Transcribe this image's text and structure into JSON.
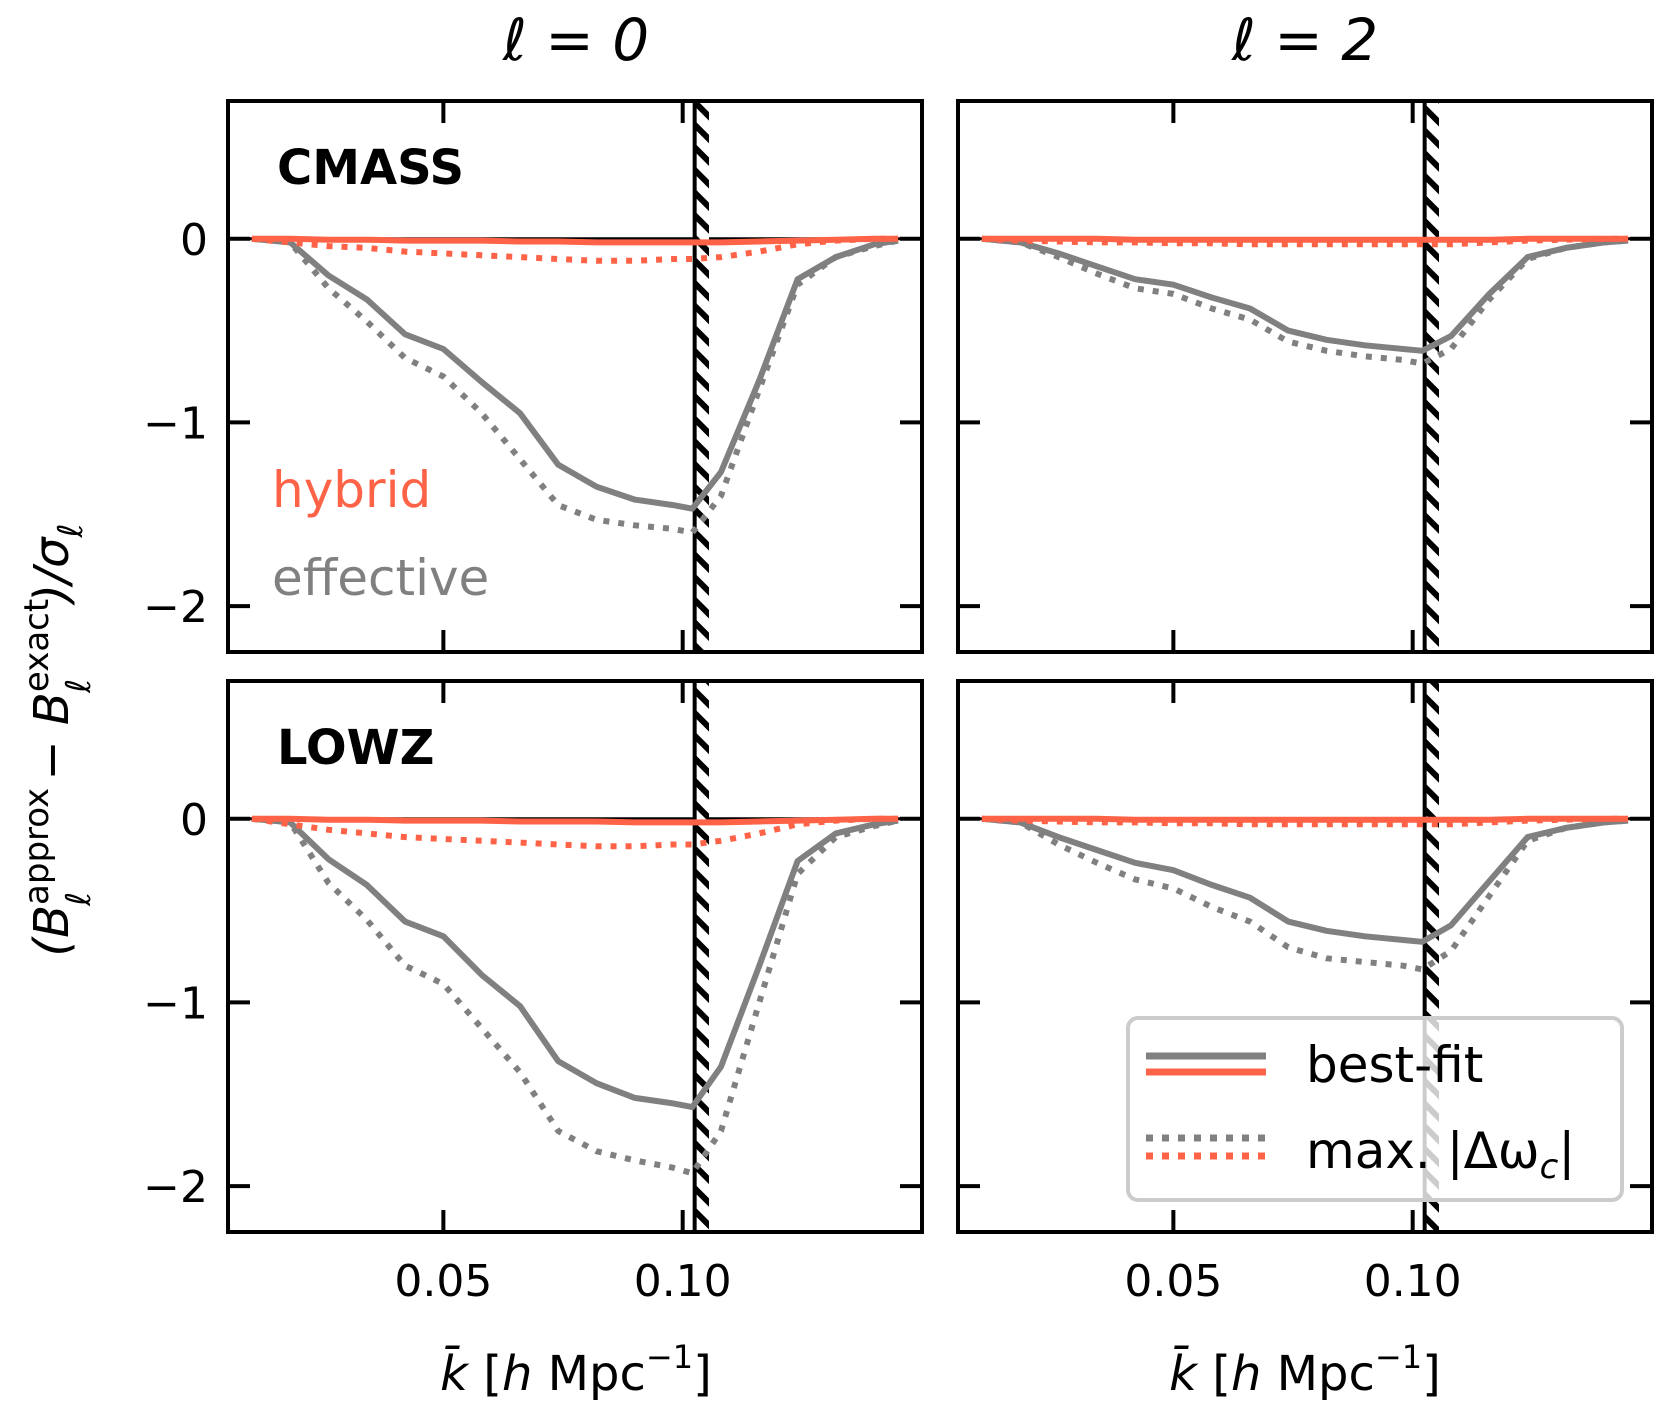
{
  "figure": {
    "column_titles": [
      "ℓ = 0",
      "ℓ = 2"
    ],
    "ylabel": {
      "open": "(B",
      "sup1": "approx",
      "sub": "ℓ",
      "minus": " − B",
      "sup2": "exact",
      "close": ")/σ",
      "sub2": "ℓ"
    },
    "xlabel": {
      "k": "k̄",
      "bracket_open": " [",
      "h": "h",
      "mpc": " Mpc",
      "sup": "−1",
      "bracket_close": "]"
    },
    "inline_labels": {
      "hybrid": "hybrid",
      "effective": "effective"
    },
    "legend": {
      "best_fit": "best-fit",
      "max": "max. |Δω",
      "max_sub": "c",
      "max_end": "|"
    },
    "colors": {
      "hybrid": "#ff6347",
      "effective": "#808080",
      "axes": "#000000"
    }
  },
  "chart_data": [
    {
      "type": "line",
      "panel": "CMASS, ℓ=0",
      "tag": "CMASS",
      "title": "",
      "xlim": [
        0.005,
        0.15
      ],
      "ylim": [
        -2.25,
        0.75
      ],
      "xticks": [
        0.05,
        0.1
      ],
      "xtick_labels": [
        "",
        ""
      ],
      "yticks": [
        0,
        -1,
        -2
      ],
      "ytick_labels": [
        "0",
        "−1",
        "−2"
      ],
      "kmax_line": 0.1025,
      "hatch_range": [
        0.1025,
        0.1055
      ],
      "x": [
        0.01,
        0.018,
        0.026,
        0.034,
        0.042,
        0.05,
        0.058,
        0.066,
        0.074,
        0.082,
        0.09,
        0.098,
        0.102,
        0.108,
        0.116,
        0.124,
        0.132,
        0.14,
        0.145
      ],
      "series": [
        {
          "name": "effective",
          "style": "best-fit",
          "color": "#808080",
          "values": [
            0,
            -0.02,
            -0.2,
            -0.33,
            -0.52,
            -0.6,
            -0.78,
            -0.95,
            -1.23,
            -1.35,
            -1.42,
            -1.45,
            -1.47,
            -1.27,
            -0.77,
            -0.22,
            -0.1,
            -0.03,
            -0.01
          ]
        },
        {
          "name": "effective",
          "style": "max",
          "color": "#808080",
          "values": [
            0,
            -0.02,
            -0.27,
            -0.45,
            -0.65,
            -0.75,
            -0.95,
            -1.2,
            -1.45,
            -1.53,
            -1.56,
            -1.58,
            -1.6,
            -1.4,
            -0.82,
            -0.25,
            -0.1,
            -0.04,
            -0.01
          ]
        },
        {
          "name": "hybrid",
          "style": "best-fit",
          "color": "#ff6347",
          "values": [
            0,
            0,
            -0.005,
            -0.005,
            -0.01,
            -0.01,
            -0.01,
            -0.015,
            -0.015,
            -0.02,
            -0.02,
            -0.02,
            -0.02,
            -0.02,
            -0.015,
            -0.01,
            -0.005,
            0,
            0
          ]
        },
        {
          "name": "hybrid",
          "style": "max",
          "color": "#ff6347",
          "values": [
            0,
            -0.02,
            -0.04,
            -0.05,
            -0.07,
            -0.08,
            -0.09,
            -0.1,
            -0.11,
            -0.12,
            -0.12,
            -0.11,
            -0.11,
            -0.1,
            -0.07,
            -0.03,
            -0.01,
            0,
            0
          ]
        }
      ]
    },
    {
      "type": "line",
      "panel": "CMASS, ℓ=2",
      "tag": "",
      "title": "",
      "xlim": [
        0.005,
        0.15
      ],
      "ylim": [
        -2.25,
        0.75
      ],
      "xticks": [
        0.05,
        0.1
      ],
      "xtick_labels": [
        "",
        ""
      ],
      "yticks": [
        0,
        -1,
        -2
      ],
      "ytick_labels": [
        "",
        "",
        ""
      ],
      "kmax_line": 0.1025,
      "hatch_range": [
        0.1025,
        0.1055
      ],
      "x": [
        0.01,
        0.018,
        0.026,
        0.034,
        0.042,
        0.05,
        0.058,
        0.066,
        0.074,
        0.082,
        0.09,
        0.098,
        0.102,
        0.108,
        0.116,
        0.124,
        0.132,
        0.14,
        0.145
      ],
      "series": [
        {
          "name": "effective",
          "style": "best-fit",
          "color": "#808080",
          "values": [
            0,
            -0.02,
            -0.08,
            -0.15,
            -0.22,
            -0.25,
            -0.32,
            -0.38,
            -0.5,
            -0.55,
            -0.58,
            -0.6,
            -0.61,
            -0.53,
            -0.3,
            -0.1,
            -0.05,
            -0.02,
            -0.01
          ]
        },
        {
          "name": "effective",
          "style": "max",
          "color": "#808080",
          "values": [
            0,
            -0.02,
            -0.1,
            -0.19,
            -0.27,
            -0.3,
            -0.38,
            -0.44,
            -0.56,
            -0.61,
            -0.64,
            -0.66,
            -0.68,
            -0.6,
            -0.33,
            -0.11,
            -0.05,
            -0.02,
            -0.01
          ]
        },
        {
          "name": "hybrid",
          "style": "best-fit",
          "color": "#ff6347",
          "values": [
            0,
            0,
            0,
            0,
            -0.005,
            -0.005,
            -0.005,
            -0.005,
            -0.005,
            -0.005,
            -0.005,
            -0.005,
            -0.005,
            -0.005,
            -0.005,
            0,
            0,
            0,
            0
          ]
        },
        {
          "name": "hybrid",
          "style": "max",
          "color": "#ff6347",
          "values": [
            0,
            -0.01,
            -0.015,
            -0.02,
            -0.02,
            -0.025,
            -0.025,
            -0.03,
            -0.03,
            -0.03,
            -0.03,
            -0.03,
            -0.03,
            -0.03,
            -0.02,
            -0.01,
            -0.005,
            0,
            0
          ]
        }
      ]
    },
    {
      "type": "line",
      "panel": "LOWZ, ℓ=0",
      "tag": "LOWZ",
      "title": "",
      "xlim": [
        0.005,
        0.15
      ],
      "ylim": [
        -2.25,
        0.75
      ],
      "xticks": [
        0.05,
        0.1
      ],
      "xtick_labels": [
        "0.05",
        "0.10"
      ],
      "yticks": [
        0,
        -1,
        -2
      ],
      "ytick_labels": [
        "0",
        "−1",
        "−2"
      ],
      "kmax_line": 0.1025,
      "hatch_range": [
        0.1025,
        0.1055
      ],
      "x": [
        0.01,
        0.018,
        0.026,
        0.034,
        0.042,
        0.05,
        0.058,
        0.066,
        0.074,
        0.082,
        0.09,
        0.098,
        0.102,
        0.108,
        0.116,
        0.124,
        0.132,
        0.14,
        0.145
      ],
      "series": [
        {
          "name": "effective",
          "style": "best-fit",
          "color": "#808080",
          "values": [
            0,
            -0.02,
            -0.22,
            -0.36,
            -0.56,
            -0.64,
            -0.85,
            -1.02,
            -1.32,
            -1.44,
            -1.52,
            -1.55,
            -1.57,
            -1.35,
            -0.8,
            -0.23,
            -0.08,
            -0.03,
            -0.01
          ]
        },
        {
          "name": "effective",
          "style": "max",
          "color": "#808080",
          "values": [
            0,
            -0.02,
            -0.35,
            -0.55,
            -0.8,
            -0.9,
            -1.14,
            -1.38,
            -1.7,
            -1.81,
            -1.86,
            -1.9,
            -1.93,
            -1.7,
            -1.0,
            -0.3,
            -0.1,
            -0.04,
            -0.01
          ]
        },
        {
          "name": "hybrid",
          "style": "best-fit",
          "color": "#ff6347",
          "values": [
            0,
            0,
            -0.005,
            -0.005,
            -0.01,
            -0.01,
            -0.01,
            -0.015,
            -0.015,
            -0.015,
            -0.02,
            -0.02,
            -0.02,
            -0.02,
            -0.015,
            -0.01,
            -0.005,
            0,
            0
          ]
        },
        {
          "name": "hybrid",
          "style": "max",
          "color": "#ff6347",
          "values": [
            0,
            -0.03,
            -0.06,
            -0.08,
            -0.1,
            -0.11,
            -0.12,
            -0.13,
            -0.14,
            -0.15,
            -0.15,
            -0.14,
            -0.14,
            -0.12,
            -0.08,
            -0.03,
            -0.01,
            0,
            0
          ]
        }
      ]
    },
    {
      "type": "line",
      "panel": "LOWZ, ℓ=2",
      "tag": "",
      "title": "",
      "xlim": [
        0.005,
        0.15
      ],
      "ylim": [
        -2.25,
        0.75
      ],
      "xticks": [
        0.05,
        0.1
      ],
      "xtick_labels": [
        "0.05",
        "0.10"
      ],
      "yticks": [
        0,
        -1,
        -2
      ],
      "ytick_labels": [
        "",
        "",
        ""
      ],
      "kmax_line": 0.1025,
      "hatch_range": [
        0.1025,
        0.1055
      ],
      "x": [
        0.01,
        0.018,
        0.026,
        0.034,
        0.042,
        0.05,
        0.058,
        0.066,
        0.074,
        0.082,
        0.09,
        0.098,
        0.102,
        0.108,
        0.116,
        0.124,
        0.132,
        0.14,
        0.145
      ],
      "series": [
        {
          "name": "effective",
          "style": "best-fit",
          "color": "#808080",
          "values": [
            0,
            -0.02,
            -0.1,
            -0.17,
            -0.24,
            -0.28,
            -0.36,
            -0.43,
            -0.56,
            -0.61,
            -0.64,
            -0.66,
            -0.67,
            -0.58,
            -0.34,
            -0.1,
            -0.05,
            -0.02,
            -0.01
          ]
        },
        {
          "name": "effective",
          "style": "max",
          "color": "#808080",
          "values": [
            0,
            -0.02,
            -0.14,
            -0.24,
            -0.33,
            -0.38,
            -0.48,
            -0.56,
            -0.7,
            -0.76,
            -0.78,
            -0.8,
            -0.82,
            -0.72,
            -0.42,
            -0.12,
            -0.05,
            -0.02,
            -0.01
          ]
        },
        {
          "name": "hybrid",
          "style": "best-fit",
          "color": "#ff6347",
          "values": [
            0,
            0,
            0,
            0,
            -0.005,
            -0.005,
            -0.005,
            -0.005,
            -0.005,
            -0.005,
            -0.005,
            -0.005,
            -0.005,
            -0.005,
            -0.005,
            0,
            0,
            0,
            0
          ]
        },
        {
          "name": "hybrid",
          "style": "max",
          "color": "#ff6347",
          "values": [
            0,
            -0.01,
            -0.015,
            -0.02,
            -0.02,
            -0.025,
            -0.025,
            -0.03,
            -0.03,
            -0.03,
            -0.03,
            -0.03,
            -0.03,
            -0.03,
            -0.02,
            -0.01,
            -0.005,
            0,
            0
          ]
        }
      ]
    }
  ]
}
